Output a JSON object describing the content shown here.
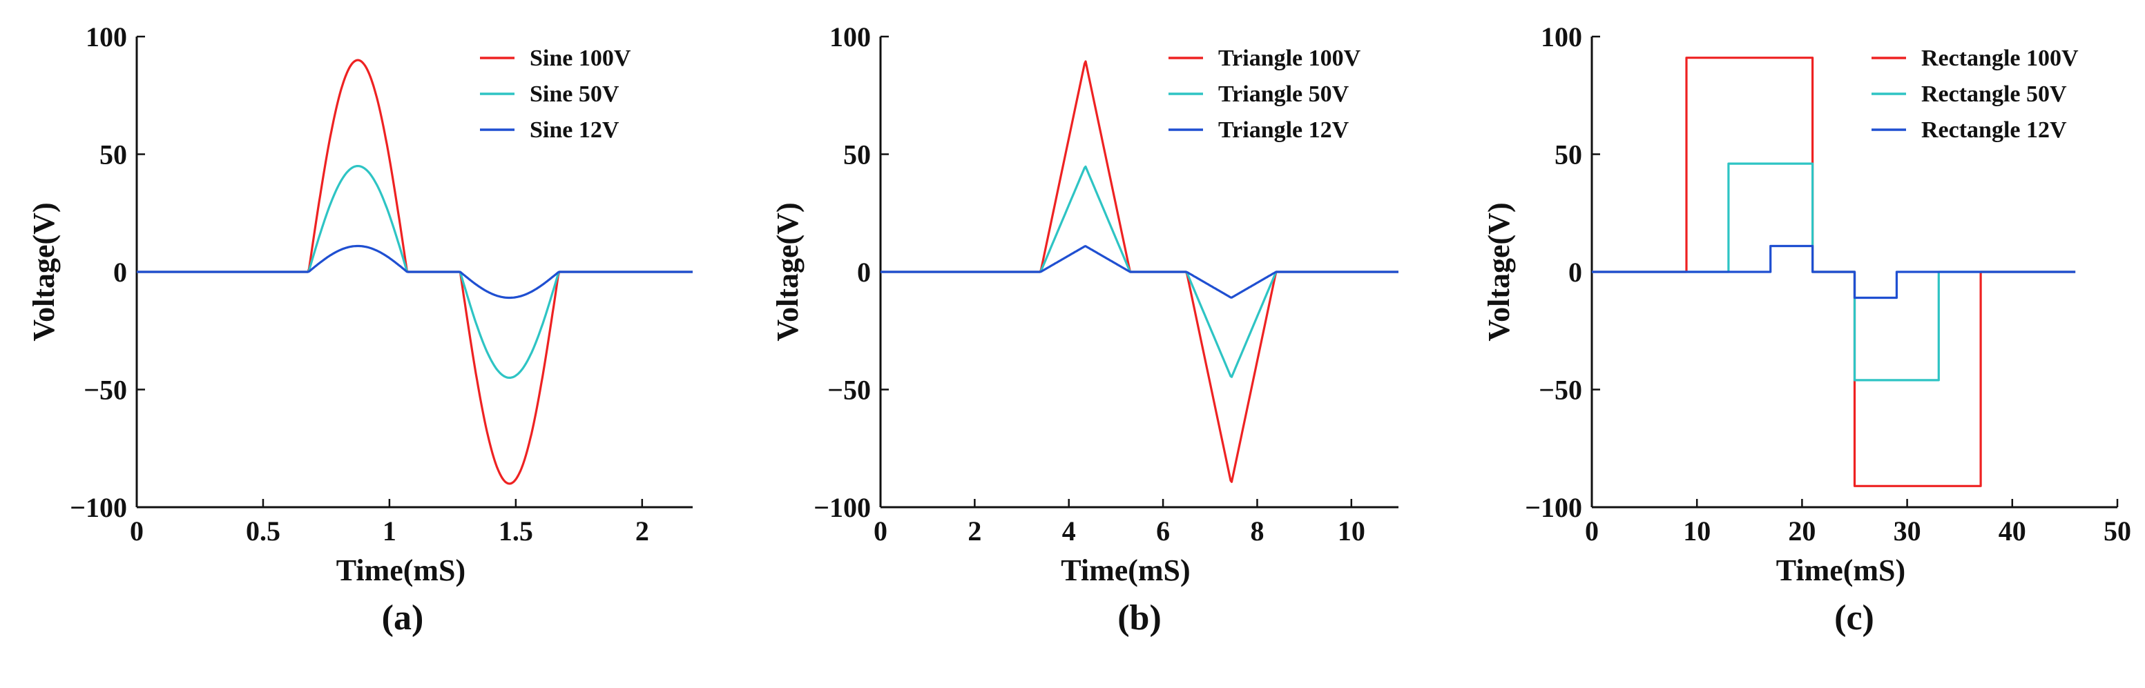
{
  "chart_data": [
    {
      "type": "line",
      "panel_label": "(a)",
      "xlabel": "Time(mS)",
      "ylabel": "Voltage(V)",
      "xlim": [
        0,
        2.2
      ],
      "ylim": [
        -100,
        100
      ],
      "xticks": [
        0,
        0.5,
        1,
        1.5,
        2
      ],
      "xtick_labels": [
        "0",
        "0.5",
        "1",
        "1.5",
        "2"
      ],
      "yticks": [
        -100,
        -50,
        0,
        50,
        100
      ],
      "ytick_labels": [
        "−100",
        "−50",
        "0",
        "50",
        "100"
      ],
      "legend_position": "top-right",
      "series": [
        {
          "name": "Sine 100V",
          "color": "#ee2222",
          "shape": "sine",
          "x": [
            0,
            0.68,
            1.07,
            1.28,
            1.67,
            2.2
          ],
          "amplitude": 90
        },
        {
          "name": "Sine 50V",
          "color": "#2ec4c4",
          "shape": "sine",
          "x": [
            0,
            0.68,
            1.07,
            1.28,
            1.67,
            2.2
          ],
          "amplitude": 45
        },
        {
          "name": "Sine 12V",
          "color": "#1f4fd1",
          "shape": "sine",
          "x": [
            0,
            0.68,
            1.07,
            1.28,
            1.67,
            2.2
          ],
          "amplitude": 11
        }
      ]
    },
    {
      "type": "line",
      "panel_label": "(b)",
      "xlabel": "Time(mS)",
      "ylabel": "Voltage(V)",
      "xlim": [
        0,
        11
      ],
      "ylim": [
        -100,
        100
      ],
      "xticks": [
        0,
        2,
        4,
        6,
        8,
        10
      ],
      "xtick_labels": [
        "0",
        "2",
        "4",
        "6",
        "8",
        "10"
      ],
      "yticks": [
        -100,
        -50,
        0,
        50,
        100
      ],
      "ytick_labels": [
        "−100",
        "−50",
        "0",
        "50",
        "100"
      ],
      "legend_position": "top-right",
      "series": [
        {
          "name": "Triangle 100V",
          "color": "#ee2222",
          "shape": "triangle",
          "x": [
            0,
            3.4,
            5.3,
            6.5,
            8.4,
            11
          ],
          "amplitude": 90
        },
        {
          "name": "Triangle 50V",
          "color": "#2ec4c4",
          "shape": "triangle",
          "x": [
            0,
            3.4,
            5.3,
            6.5,
            8.4,
            11
          ],
          "amplitude": 45
        },
        {
          "name": "Triangle 12V",
          "color": "#1f4fd1",
          "shape": "triangle",
          "x": [
            0,
            3.4,
            5.3,
            6.5,
            8.4,
            11
          ],
          "amplitude": 11
        }
      ]
    },
    {
      "type": "line",
      "panel_label": "(c)",
      "xlabel": "Time(mS)",
      "ylabel": "Voltage(V)",
      "xlim": [
        0,
        50
      ],
      "ylim": [
        -100,
        100
      ],
      "xticks": [
        0,
        10,
        20,
        30,
        40,
        50
      ],
      "xtick_labels": [
        "0",
        "10",
        "20",
        "30",
        "40",
        "50"
      ],
      "yticks": [
        -100,
        -50,
        0,
        50,
        100
      ],
      "ytick_labels": [
        "−100",
        "−50",
        "0",
        "50",
        "100"
      ],
      "legend_position": "top-right",
      "series": [
        {
          "name": "Rectangle 100V",
          "color": "#ee2222",
          "shape": "rectangle",
          "x": [
            0,
            9,
            21,
            25,
            37,
            46
          ],
          "amplitude": 91
        },
        {
          "name": "Rectangle 50V",
          "color": "#2ec4c4",
          "shape": "rectangle",
          "x": [
            0,
            13,
            21,
            25,
            33,
            46
          ],
          "amplitude": 46
        },
        {
          "name": "Rectangle 12V",
          "color": "#1f4fd1",
          "shape": "rectangle",
          "x": [
            0,
            17,
            21,
            25,
            29,
            46
          ],
          "amplitude": 11
        }
      ]
    }
  ]
}
